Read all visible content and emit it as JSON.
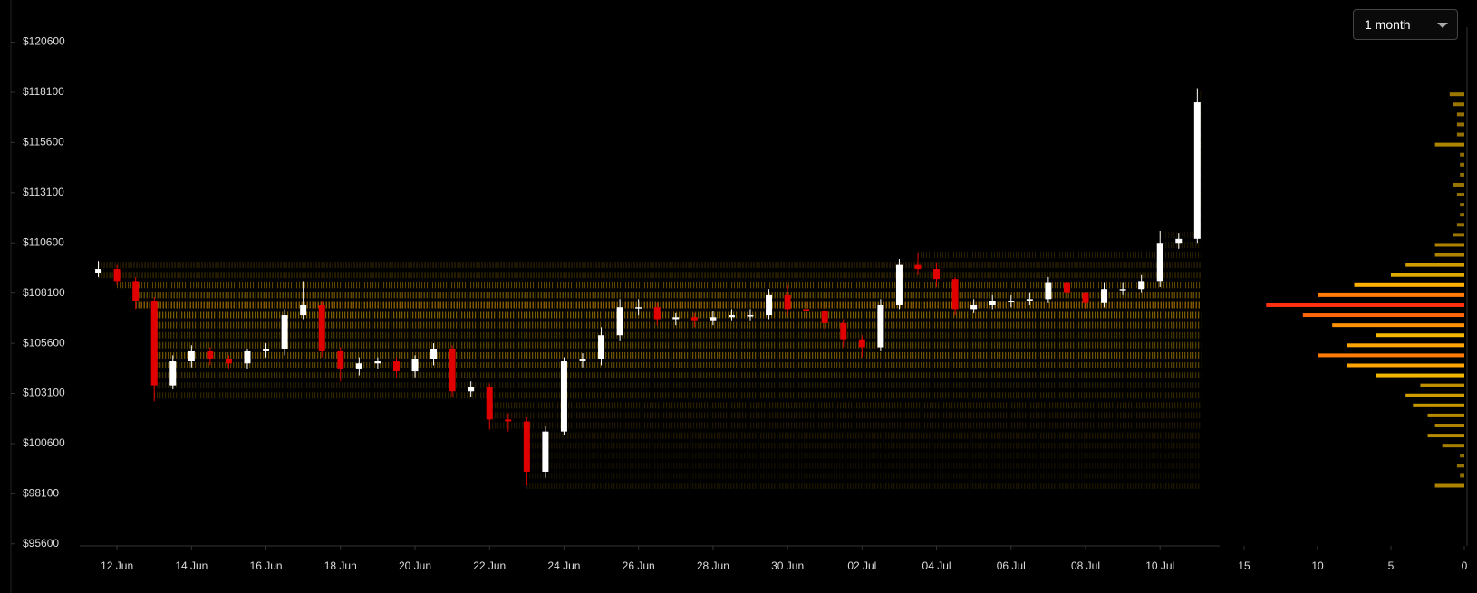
{
  "range_selector": "1 month",
  "chart_data": [
    {
      "type": "candlestick",
      "up_color": "#ffffff",
      "down_color": "#e00000",
      "xlim": [
        -1.0,
        29.6
      ],
      "ylim": [
        95500,
        122700
      ],
      "xticks": [
        {
          "value": 0,
          "label": "12 Jun"
        },
        {
          "value": 2,
          "label": "14 Jun"
        },
        {
          "value": 4,
          "label": "16 Jun"
        },
        {
          "value": 6,
          "label": "18 Jun"
        },
        {
          "value": 8,
          "label": "20 Jun"
        },
        {
          "value": 10,
          "label": "22 Jun"
        },
        {
          "value": 12,
          "label": "24 Jun"
        },
        {
          "value": 14,
          "label": "26 Jun"
        },
        {
          "value": 16,
          "label": "28 Jun"
        },
        {
          "value": 18,
          "label": "30 Jun"
        },
        {
          "value": 20,
          "label": "02 Jul"
        },
        {
          "value": 22,
          "label": "04 Jul"
        },
        {
          "value": 24,
          "label": "06 Jul"
        },
        {
          "value": 26,
          "label": "08 Jul"
        },
        {
          "value": 28,
          "label": "10 Jul"
        }
      ],
      "yticks": [
        {
          "value": 95600,
          "label": "$95600"
        },
        {
          "value": 98100,
          "label": "$98100"
        },
        {
          "value": 100600,
          "label": "$100600"
        },
        {
          "value": 103100,
          "label": "$103100"
        },
        {
          "value": 105600,
          "label": "$105600"
        },
        {
          "value": 108100,
          "label": "$108100"
        },
        {
          "value": 110600,
          "label": "$110600"
        },
        {
          "value": 113100,
          "label": "$113100"
        },
        {
          "value": 115600,
          "label": "$115600"
        },
        {
          "value": 118100,
          "label": "$118100"
        },
        {
          "value": 120600,
          "label": "$120600"
        }
      ],
      "x": [
        -0.5,
        0,
        0.5,
        1,
        1.5,
        2,
        2.5,
        3,
        3.5,
        4,
        4.5,
        5,
        5.5,
        6,
        6.5,
        7,
        7.5,
        8,
        8.5,
        9,
        9.5,
        10,
        10.5,
        11,
        11.5,
        12,
        12.5,
        13,
        13.5,
        14,
        14.5,
        15,
        15.5,
        16,
        16.5,
        17,
        17.5,
        18,
        18.5,
        19,
        19.5,
        20,
        20.5,
        21,
        21.5,
        22,
        22.5,
        23,
        23.5,
        24,
        24.5,
        25,
        25.5,
        26,
        26.5,
        27,
        27.5,
        28,
        28.5,
        29
      ],
      "open": [
        109100,
        109300,
        108700,
        107700,
        103500,
        104700,
        105200,
        104800,
        104600,
        105200,
        105300,
        107000,
        107500,
        105200,
        104300,
        104600,
        104700,
        104200,
        104800,
        105300,
        103200,
        103400,
        101800,
        101700,
        99200,
        101200,
        104700,
        104800,
        106000,
        107400,
        107400,
        106800,
        106900,
        106700,
        106900,
        107000,
        107000,
        108000,
        107300,
        107200,
        106600,
        105800,
        105400,
        107500,
        109500,
        109300,
        108800,
        107300,
        107500,
        107700,
        107700,
        107800,
        108600,
        108100,
        107600,
        108300,
        108300,
        108700,
        110600,
        110800
      ],
      "high": [
        109700,
        109500,
        108900,
        107900,
        105000,
        105500,
        105400,
        105000,
        105300,
        105600,
        107300,
        108700,
        107700,
        105400,
        104900,
        104900,
        104900,
        105000,
        105600,
        105500,
        103700,
        103600,
        102100,
        101900,
        101500,
        104900,
        105100,
        106400,
        107800,
        107800,
        107600,
        107100,
        107100,
        107200,
        107300,
        107300,
        108300,
        108500,
        107600,
        107300,
        106800,
        106000,
        107800,
        109800,
        110100,
        109600,
        108900,
        107800,
        108000,
        108000,
        108100,
        108900,
        108800,
        108000,
        108600,
        108600,
        109000,
        111200,
        111100,
        118300
      ],
      "low": [
        108900,
        108500,
        107300,
        102700,
        103300,
        104400,
        104500,
        104300,
        104300,
        104900,
        105000,
        106800,
        104900,
        103700,
        104000,
        104300,
        103900,
        103900,
        104500,
        102900,
        102900,
        101300,
        101200,
        98500,
        98900,
        101000,
        104400,
        104500,
        105700,
        107000,
        106500,
        106500,
        106400,
        106500,
        106700,
        106700,
        106800,
        107000,
        106900,
        106200,
        105400,
        104900,
        105200,
        107300,
        109000,
        108400,
        107000,
        107100,
        107300,
        107400,
        107500,
        107600,
        107800,
        107300,
        107400,
        108000,
        108100,
        108400,
        110300,
        110600
      ],
      "close": [
        109300,
        108700,
        107700,
        103500,
        104700,
        105200,
        104800,
        104600,
        105200,
        105300,
        107000,
        107500,
        105200,
        104300,
        104600,
        104700,
        104200,
        104800,
        105300,
        103200,
        103400,
        101800,
        101700,
        99200,
        101200,
        104700,
        104800,
        106000,
        107400,
        107400,
        106800,
        106900,
        106700,
        106900,
        107000,
        107000,
        108000,
        107300,
        107200,
        106600,
        105800,
        105400,
        107500,
        109500,
        109300,
        108800,
        107300,
        107500,
        107700,
        107700,
        107800,
        108600,
        108100,
        107600,
        108300,
        108300,
        108700,
        110600,
        110800,
        117600
      ]
    },
    {
      "type": "bar",
      "orientation": "horizontal",
      "colors": [
        "#8a6a00",
        "#ffc000",
        "#ff3010"
      ],
      "xlim": [
        15,
        0
      ],
      "xticks": [
        15,
        10,
        5,
        0
      ],
      "y": [
        98500,
        99000,
        99500,
        100000,
        100500,
        101000,
        101500,
        102000,
        102500,
        103000,
        103500,
        104000,
        104500,
        105000,
        105500,
        106000,
        106500,
        107000,
        107500,
        108000,
        108500,
        109000,
        109500,
        110000,
        110500,
        111000,
        111500,
        112000,
        112500,
        113000,
        113500,
        114000,
        114500,
        115000,
        115500,
        116000,
        116500,
        117000,
        117500,
        118000
      ],
      "values": [
        2,
        0.3,
        0.5,
        0.3,
        1.5,
        2.5,
        2,
        2.5,
        3.5,
        4,
        3,
        6,
        8,
        10,
        8,
        6,
        9,
        11,
        13.5,
        10,
        7.5,
        5,
        4,
        2,
        2,
        0.8,
        0.5,
        0.3,
        0.3,
        0.5,
        0.8,
        0.3,
        0.3,
        0.3,
        2,
        0.5,
        0.5,
        0.5,
        0.8,
        1
      ]
    }
  ]
}
